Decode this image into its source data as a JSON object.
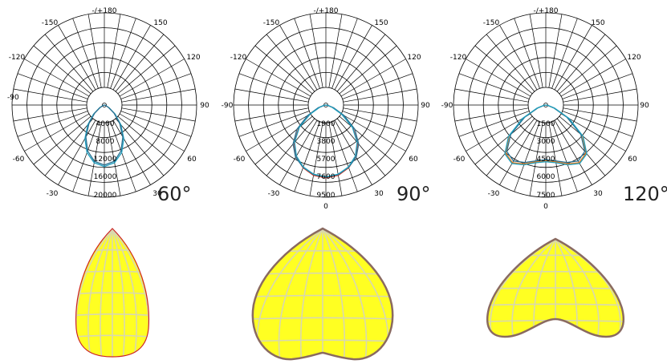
{
  "colors": {
    "grid": "#000000",
    "curve_primary": "#1f9fbf",
    "curve_secondary": "#2a6f8f",
    "curve_red": "#d03020",
    "curve_orange": "#e07a20",
    "beam_fill": "#ffff22",
    "beam_grid": "#d8d8b0",
    "beam_edge_red": "#cc2222",
    "beam_edge_gray": "#8a6a60"
  },
  "chart_data": [
    {
      "type": "polar",
      "angle_labels": [
        "-/+180",
        "150",
        "120",
        "90",
        "60",
        "30",
        "-150",
        "-120",
        "-90",
        "-60",
        "-30"
      ],
      "radial_ticks": [
        "4000",
        "8000",
        "12000",
        "16000",
        "20000"
      ],
      "r_max": 20000,
      "beam_label": "60°",
      "series": [
        {
          "angles": [
            0,
            10,
            20,
            30,
            40,
            50,
            60,
            70,
            80,
            90
          ],
          "values": [
            16500,
            15700,
            13600,
            10400,
            6900,
            3800,
            1500,
            400,
            80,
            0
          ]
        },
        {
          "angles": [
            0,
            10,
            20,
            30,
            40,
            50,
            60,
            70,
            80,
            90
          ],
          "values": [
            16100,
            15300,
            13100,
            9900,
            6400,
            3400,
            1300,
            350,
            60,
            0
          ]
        }
      ]
    },
    {
      "type": "polar",
      "angle_labels": [
        "-/+180",
        "150",
        "120",
        "90",
        "60",
        "30",
        "0",
        "-150",
        "-120",
        "-90",
        "-60",
        "-30"
      ],
      "radial_ticks": [
        "1900",
        "3800",
        "5700",
        "7600",
        "9500"
      ],
      "r_max": 9500,
      "beam_label": "90°",
      "series": [
        {
          "angles": [
            0,
            10,
            20,
            30,
            40,
            50,
            60,
            70,
            80,
            90
          ],
          "values": [
            9300,
            9100,
            8500,
            7600,
            6300,
            4500,
            2400,
            900,
            200,
            0
          ]
        },
        {
          "angles": [
            0,
            10,
            20,
            30,
            40,
            50,
            60,
            70,
            80,
            90
          ],
          "values": [
            9200,
            9000,
            8450,
            7700,
            6500,
            4800,
            2700,
            1050,
            250,
            0
          ]
        },
        {
          "angles": [
            0,
            10,
            20,
            30,
            40,
            50,
            60,
            70,
            80,
            90
          ],
          "values": [
            9150,
            8950,
            8400,
            7500,
            6200,
            4400,
            2300,
            850,
            180,
            0
          ]
        }
      ]
    },
    {
      "type": "polar",
      "angle_labels": [
        "-/+180",
        "150",
        "120",
        "90",
        "60",
        "30",
        "0",
        "-150",
        "-120",
        "-90",
        "-60",
        "-30"
      ],
      "radial_ticks": [
        "1500",
        "3000",
        "4500",
        "6000",
        "7500"
      ],
      "r_max": 7500,
      "beam_label": "120°",
      "series": [
        {
          "angles": [
            0,
            10,
            20,
            30,
            40,
            50,
            60,
            70,
            80,
            90
          ],
          "values": [
            5600,
            5800,
            6300,
            6700,
            6300,
            4800,
            2600,
            900,
            200,
            0
          ]
        },
        {
          "angles": [
            0,
            10,
            20,
            30,
            40,
            50,
            60,
            70,
            80,
            90
          ],
          "values": [
            5500,
            5700,
            6150,
            6500,
            6100,
            4600,
            2450,
            850,
            180,
            0
          ]
        },
        {
          "angles": [
            0,
            10,
            20,
            30,
            40,
            50,
            60,
            70,
            80,
            90
          ],
          "values": [
            5700,
            5900,
            6400,
            6800,
            6400,
            4900,
            2700,
            950,
            220,
            0
          ]
        }
      ]
    }
  ]
}
